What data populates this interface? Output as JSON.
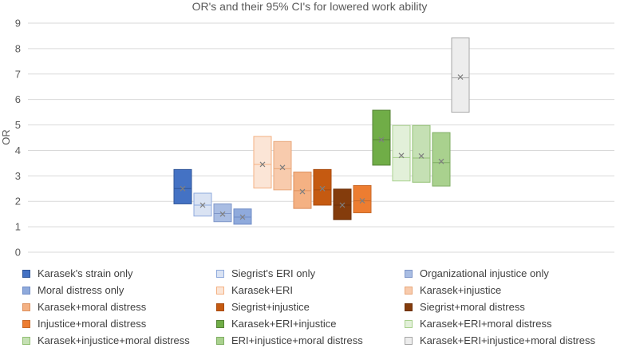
{
  "chart_data": {
    "type": "boxplot",
    "title": "OR's and their 95% CI's for lowered work ability",
    "ylabel": "OR",
    "xlabel": "",
    "ylim": [
      0,
      9
    ],
    "yticks": [
      0,
      1,
      2,
      3,
      4,
      5,
      6,
      7,
      8,
      9
    ],
    "legend_position": "bottom",
    "series": [
      {
        "name": "Karasek's strain only",
        "low": 1.9,
        "mid": 2.5,
        "high": 3.25,
        "mean": 2.5,
        "fill": "#4472c4",
        "stroke": "#2f5597"
      },
      {
        "name": "Siegrist's ERI only",
        "low": 1.42,
        "mid": 1.85,
        "high": 2.32,
        "mean": 1.85,
        "fill": "#dae3f3",
        "stroke": "#8faadc"
      },
      {
        "name": "Organizational injustice only",
        "low": 1.2,
        "mid": 1.52,
        "high": 1.9,
        "mean": 1.5,
        "fill": "#a9bde3",
        "stroke": "#7f96c8"
      },
      {
        "name": "Moral distress only",
        "low": 1.1,
        "mid": 1.38,
        "high": 1.7,
        "mean": 1.38,
        "fill": "#8faadc",
        "stroke": "#6f8cc6"
      },
      {
        "name": "Karasek+ERI",
        "low": 2.52,
        "mid": 3.45,
        "high": 4.55,
        "mean": 3.45,
        "fill": "#fbe5d6",
        "stroke": "#f4b183"
      },
      {
        "name": "Karasek+injustice",
        "low": 2.45,
        "mid": 3.28,
        "high": 4.35,
        "mean": 3.33,
        "fill": "#f8cbad",
        "stroke": "#e8a77a"
      },
      {
        "name": "Karasek+moral distress",
        "low": 1.72,
        "mid": 2.42,
        "high": 3.15,
        "mean": 2.38,
        "fill": "#f4b183",
        "stroke": "#dd8f5c"
      },
      {
        "name": "Siegrist+injustice",
        "low": 1.85,
        "mid": 2.45,
        "high": 3.25,
        "mean": 2.5,
        "fill": "#c55a11",
        "stroke": "#a84a0e"
      },
      {
        "name": "Siegrist+moral distress",
        "low": 1.28,
        "mid": 1.85,
        "high": 2.48,
        "mean": 1.85,
        "fill": "#843c0c",
        "stroke": "#6b300a"
      },
      {
        "name": "Injustice+moral distress",
        "low": 1.55,
        "mid": 2.02,
        "high": 2.62,
        "mean": 2.02,
        "fill": "#ed7d31",
        "stroke": "#c86a2a"
      },
      {
        "name": "Karasek+ERI+injustice",
        "low": 3.42,
        "mid": 4.42,
        "high": 5.58,
        "mean": 4.42,
        "fill": "#70ad47",
        "stroke": "#548235"
      },
      {
        "name": "Karasek+ERI+moral distress",
        "low": 2.8,
        "mid": 3.72,
        "high": 4.98,
        "mean": 3.8,
        "fill": "#e2f0d9",
        "stroke": "#a9d18e"
      },
      {
        "name": "Karasek+injustice+moral distress",
        "low": 2.75,
        "mid": 3.7,
        "high": 4.98,
        "mean": 3.78,
        "fill": "#c5e0b4",
        "stroke": "#92c073"
      },
      {
        "name": "ERI+injustice+moral distress",
        "low": 2.6,
        "mid": 3.52,
        "high": 4.7,
        "mean": 3.57,
        "fill": "#a9d18e",
        "stroke": "#7fae63"
      },
      {
        "name": "Karasek+ERI+injustice+moral distress",
        "low": 5.5,
        "mid": 6.85,
        "high": 8.42,
        "mean": 6.88,
        "fill": "#ededed",
        "stroke": "#a6a6a6"
      }
    ]
  }
}
